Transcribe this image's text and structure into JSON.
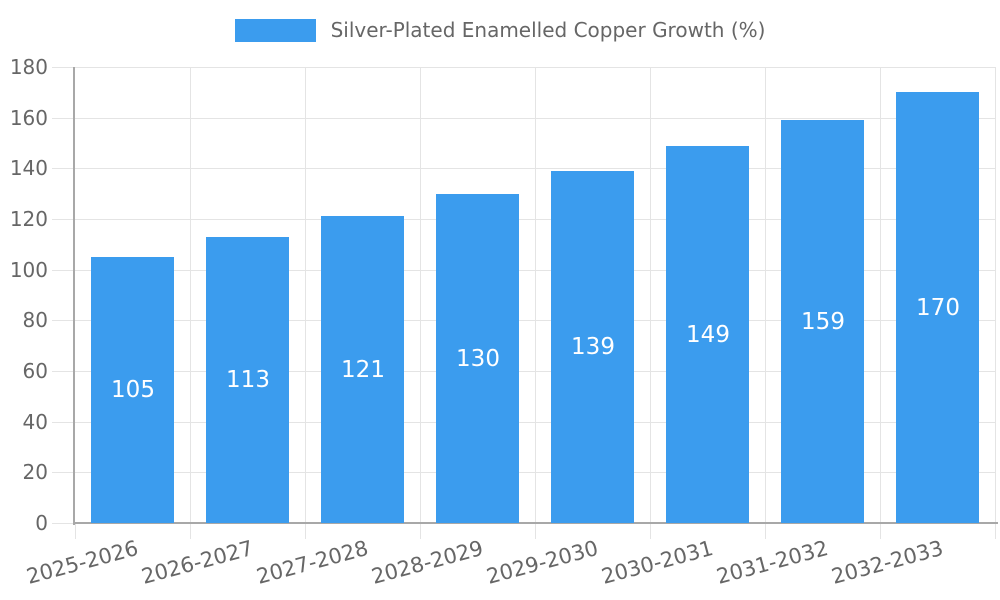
{
  "legend": {
    "label": "Silver-Plated Enamelled Copper Growth (%)"
  },
  "chart_data": {
    "type": "bar",
    "title": "Silver-Plated Enamelled Copper Growth (%)",
    "categories": [
      "2025-2026",
      "2026-2027",
      "2027-2028",
      "2028-2029",
      "2029-2030",
      "2030-2031",
      "2031-2032",
      "2032-2033"
    ],
    "values": [
      105,
      113,
      121,
      130,
      139,
      149,
      159,
      170
    ],
    "xlabel": "",
    "ylabel": "",
    "ylim": [
      0,
      180
    ],
    "ytick_step": 20,
    "ytick_labels": [
      "0",
      "20",
      "40",
      "60",
      "80",
      "100",
      "120",
      "140",
      "160",
      "180"
    ],
    "grid": true,
    "legend_position": "top-center",
    "value_label_position": "centered-inside-bars"
  },
  "colors": {
    "bar": "#3B9CEE",
    "grid": "#E4E4E4",
    "axis": "#A8A8A8",
    "tick_label": "#666666",
    "legend_label": "#666666",
    "value_label": "#FFFFFF",
    "background": "#FFFFFF"
  }
}
